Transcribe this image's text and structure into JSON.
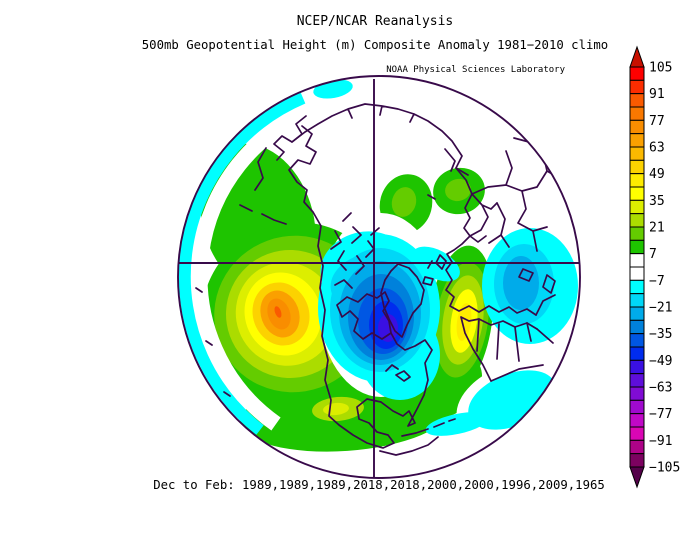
{
  "title": "NCEP/NCAR Reanalysis",
  "subtitle": "500mb Geopotential Height (m) Composite Anomaly 1981−2010 climo",
  "attribution": "NOAA Physical Sciences Laboratory",
  "caption": "Dec to Feb: 1989,1989,1989,2018,2018,2000,2000,1996,2009,1965",
  "colorbar": {
    "tick_labels": [
      "105",
      "91",
      "77",
      "63",
      "49",
      "35",
      "21",
      "7",
      "−7",
      "−21",
      "−35",
      "−49",
      "−63",
      "−77",
      "−91",
      "−105"
    ],
    "cell_colors": [
      "#FE0000",
      "#FC2D00",
      "#FA5A00",
      "#F97800",
      "#F98D00",
      "#FAA000",
      "#FBB900",
      "#FCD200",
      "#FEEB00",
      "#FFFF00",
      "#DCEE00",
      "#ABDC00",
      "#64CC00",
      "#1EC400",
      "#FFFFFF",
      "#FFFFFF",
      "#00FFFF",
      "#00D7F7",
      "#00ABEA",
      "#0081DB",
      "#0057E3",
      "#002CEE",
      "#3A10E2",
      "#5E0EDA",
      "#800CD4",
      "#A00ACE",
      "#C008C6",
      "#DA06B4",
      "#AE0388",
      "#7C0260"
    ],
    "over_arrow_color": "#C81000",
    "under_arrow_color": "#54014A",
    "cell_border_color": "#000000"
  },
  "map": {
    "projection": "Northern Hemisphere polar stereographic",
    "background_color": "#FFFFFF",
    "outline_color": "#380A4A",
    "anomaly_centers": [
      {
        "region": "North Pacific / Gulf of Alaska",
        "sign": "positive",
        "peak_value_m": 90
      },
      {
        "region": "Eastern Canada / Hudson Bay",
        "sign": "negative",
        "peak_value_m": -55
      },
      {
        "region": "Central North Atlantic",
        "sign": "positive",
        "peak_value_m": 50
      },
      {
        "region": "Eastern Europe / Middle East",
        "sign": "negative",
        "peak_value_m": -25
      },
      {
        "region": "Central Siberia",
        "sign": "positive",
        "peak_value_m": 25
      }
    ]
  }
}
